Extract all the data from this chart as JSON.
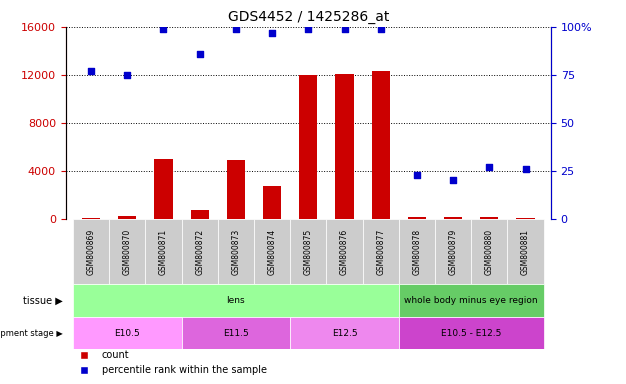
{
  "title": "GDS4452 / 1425286_at",
  "samples": [
    "GSM800869",
    "GSM800870",
    "GSM800871",
    "GSM800872",
    "GSM800873",
    "GSM800874",
    "GSM800875",
    "GSM800876",
    "GSM800877",
    "GSM800878",
    "GSM800879",
    "GSM800880",
    "GSM800881"
  ],
  "counts": [
    50,
    200,
    5000,
    700,
    4900,
    2700,
    12000,
    12100,
    12300,
    150,
    120,
    120,
    100
  ],
  "percentile_ranks": [
    77,
    75,
    99,
    86,
    99,
    97,
    99,
    99,
    99,
    23,
    20,
    27,
    26
  ],
  "bar_color": "#cc0000",
  "dot_color": "#0000cc",
  "left_yaxis_color": "#cc0000",
  "right_yaxis_color": "#0000cc",
  "ylim_left": [
    0,
    16000
  ],
  "ylim_right": [
    0,
    100
  ],
  "left_yticks": [
    0,
    4000,
    8000,
    12000,
    16000
  ],
  "right_yticks": [
    0,
    25,
    50,
    75,
    100
  ],
  "right_yticklabels": [
    "0",
    "25",
    "50",
    "75",
    "100%"
  ],
  "tissue_groups": [
    {
      "label": "lens",
      "start": 0,
      "end": 9,
      "color": "#99ff99"
    },
    {
      "label": "whole body minus eye region",
      "start": 9,
      "end": 13,
      "color": "#66cc66"
    }
  ],
  "dev_stage_groups": [
    {
      "label": "E10.5",
      "start": 0,
      "end": 3,
      "color": "#ff99ff"
    },
    {
      "label": "E11.5",
      "start": 3,
      "end": 6,
      "color": "#dd66dd"
    },
    {
      "label": "E12.5",
      "start": 6,
      "end": 9,
      "color": "#ee88ee"
    },
    {
      "label": "E10.5 - E12.5",
      "start": 9,
      "end": 13,
      "color": "#cc44cc"
    }
  ],
  "legend_count_color": "#cc0000",
  "legend_dot_color": "#0000cc",
  "background_color": "#ffffff",
  "bar_width": 0.5,
  "xlim": [
    -0.7,
    12.7
  ]
}
